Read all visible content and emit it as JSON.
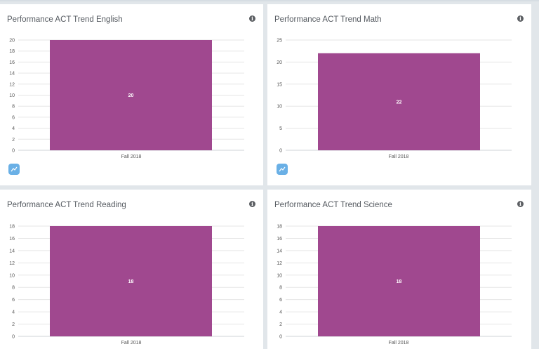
{
  "info_glyph": "i",
  "chart_data": [
    {
      "type": "bar",
      "title": "Performance ACT Trend English",
      "categories": [
        "Fall 2018"
      ],
      "values": [
        20
      ],
      "yticks": [
        0,
        2,
        4,
        6,
        8,
        10,
        12,
        14,
        16,
        18,
        20
      ],
      "ylim": [
        0,
        20
      ],
      "bar_color": "#a0488f",
      "grid": true,
      "show_trend_button": true
    },
    {
      "type": "bar",
      "title": "Performance ACT Trend Math",
      "categories": [
        "Fall 2018"
      ],
      "values": [
        22
      ],
      "yticks": [
        0,
        5,
        10,
        15,
        20,
        25
      ],
      "ylim": [
        0,
        25
      ],
      "bar_color": "#a0488f",
      "grid": true,
      "show_trend_button": true
    },
    {
      "type": "bar",
      "title": "Performance ACT Trend Reading",
      "categories": [
        "Fall 2018"
      ],
      "values": [
        18
      ],
      "yticks": [
        0,
        2,
        4,
        6,
        8,
        10,
        12,
        14,
        16,
        18
      ],
      "ylim": [
        0,
        18
      ],
      "bar_color": "#a0488f",
      "grid": true,
      "show_trend_button": false
    },
    {
      "type": "bar",
      "title": "Performance ACT Trend Science",
      "categories": [
        "Fall 2018"
      ],
      "values": [
        18
      ],
      "yticks": [
        0,
        2,
        4,
        6,
        8,
        10,
        12,
        14,
        16,
        18
      ],
      "ylim": [
        0,
        18
      ],
      "bar_color": "#a0488f",
      "grid": true,
      "show_trend_button": false
    }
  ]
}
